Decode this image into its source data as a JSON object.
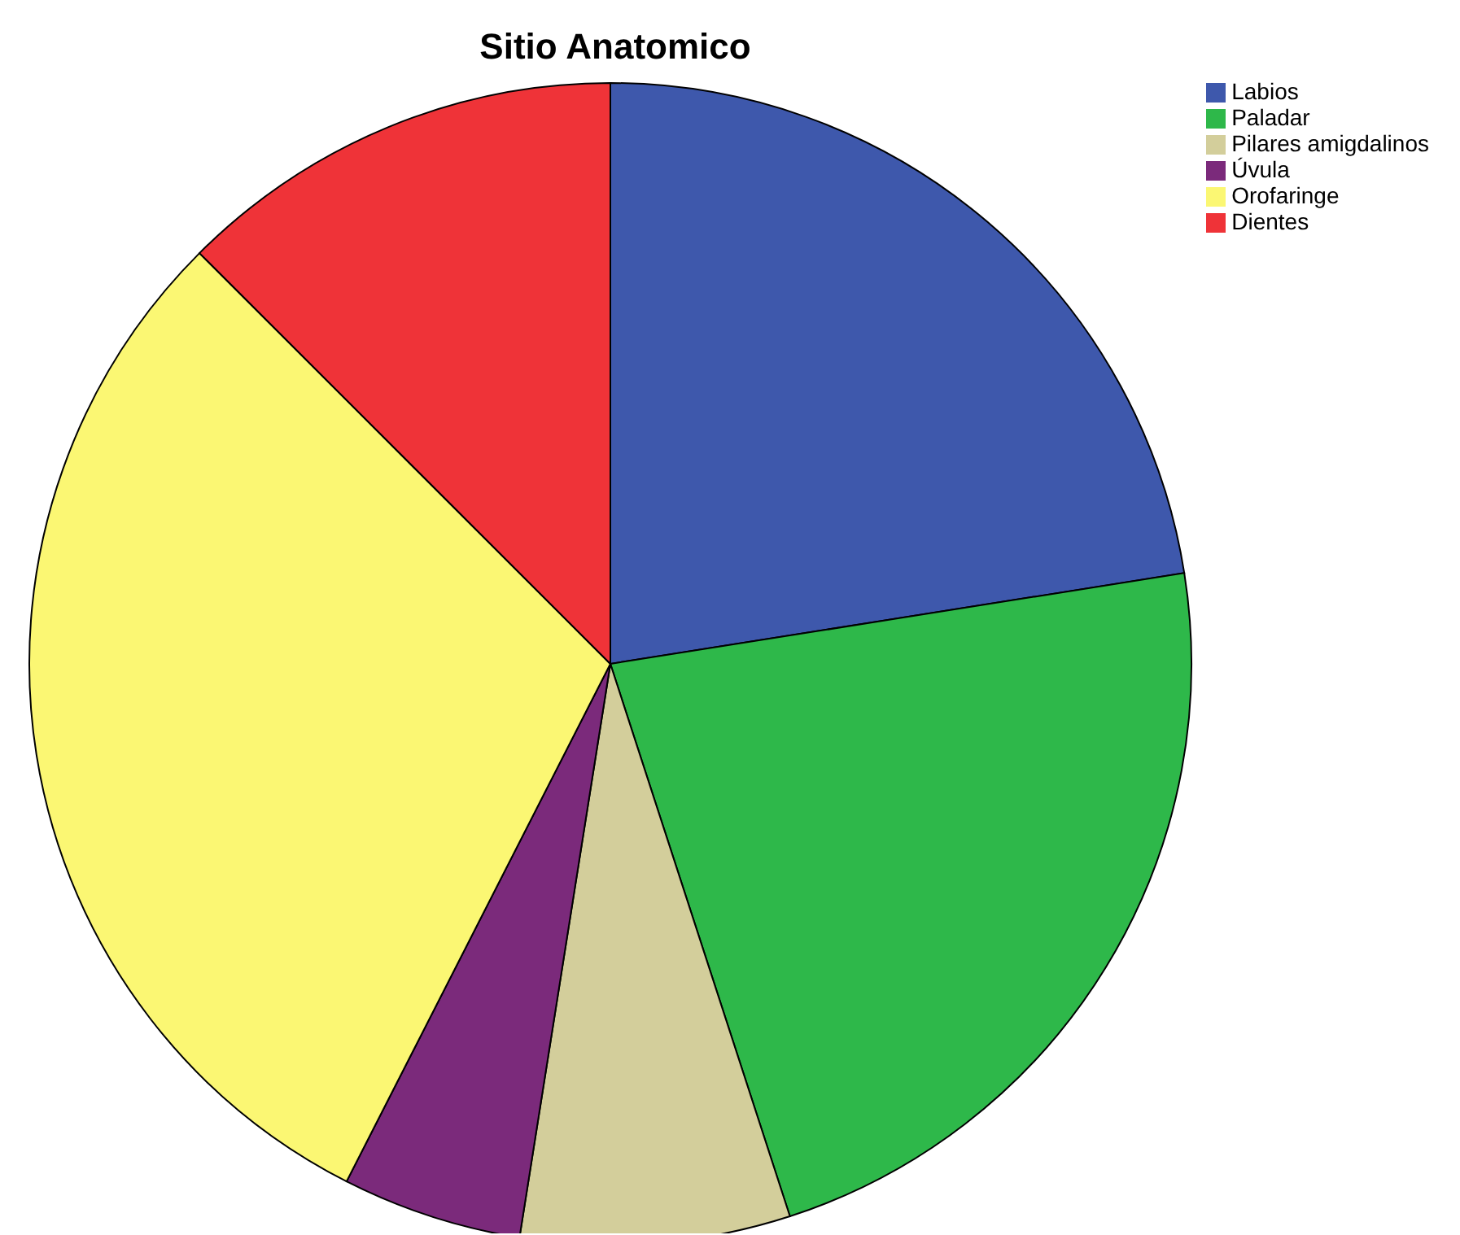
{
  "chart_data": {
    "type": "pie",
    "title": "Sitio Anatomico",
    "categories": [
      "Labios",
      "Paladar",
      "Pilares amigdalinos",
      "Úvula",
      "Orofaringe",
      "Dientes"
    ],
    "values": [
      22.5,
      22.5,
      7.5,
      5,
      30,
      12.5
    ],
    "colors": [
      "#3e58ac",
      "#2eb84a",
      "#d3ce9b",
      "#7b2a7b",
      "#fbf773",
      "#ef3338"
    ],
    "legend": "top right"
  }
}
